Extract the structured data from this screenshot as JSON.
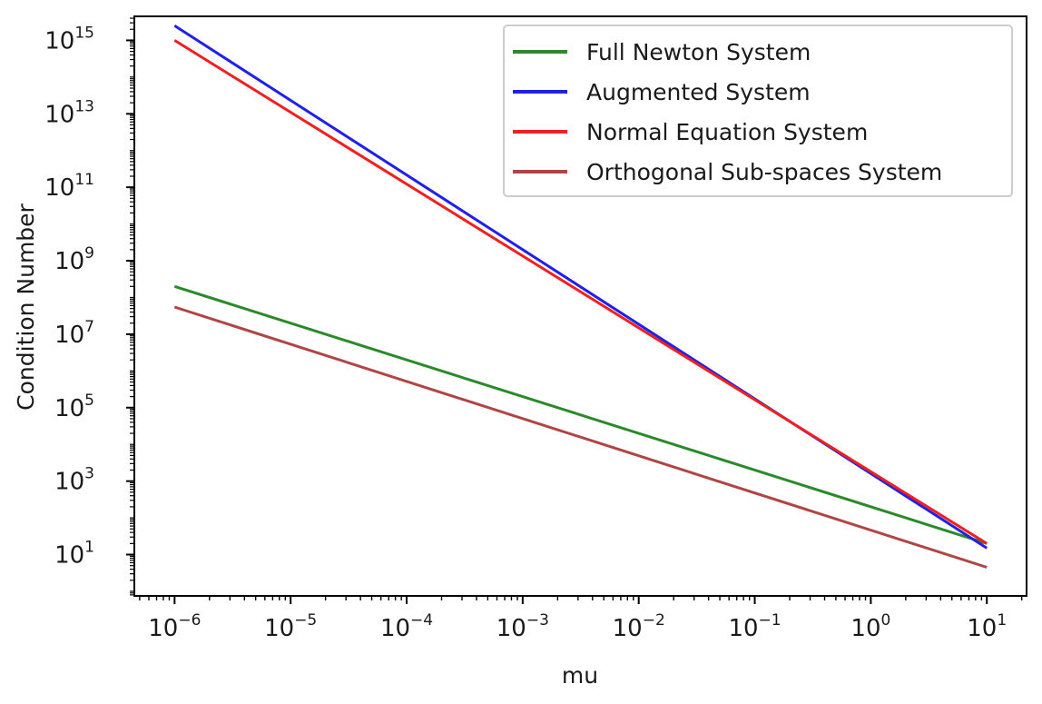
{
  "chart_data": {
    "type": "line",
    "xlabel": "mu",
    "ylabel": "Condition Number",
    "xscale": "log",
    "yscale": "log",
    "xlim": [
      4.5e-07,
      22
    ],
    "ylim": [
      0.75,
      4500000000000000.0
    ],
    "grid": false,
    "legend_position": "top-right",
    "x_ticks": [
      {
        "base": "10",
        "exp": "−6",
        "value": 1e-06
      },
      {
        "base": "10",
        "exp": "−5",
        "value": 1e-05
      },
      {
        "base": "10",
        "exp": "−4",
        "value": 0.0001
      },
      {
        "base": "10",
        "exp": "−3",
        "value": 0.001
      },
      {
        "base": "10",
        "exp": "−2",
        "value": 0.01
      },
      {
        "base": "10",
        "exp": "−1",
        "value": 0.1
      },
      {
        "base": "10",
        "exp": "0",
        "value": 1
      },
      {
        "base": "10",
        "exp": "1",
        "value": 10
      }
    ],
    "y_ticks": [
      {
        "base": "10",
        "exp": "1",
        "value": 10
      },
      {
        "base": "10",
        "exp": "3",
        "value": 1000
      },
      {
        "base": "10",
        "exp": "5",
        "value": 100000
      },
      {
        "base": "10",
        "exp": "7",
        "value": 10000000
      },
      {
        "base": "10",
        "exp": "9",
        "value": 1000000000
      },
      {
        "base": "10",
        "exp": "11",
        "value": 100000000000
      },
      {
        "base": "10",
        "exp": "13",
        "value": 10000000000000
      },
      {
        "base": "10",
        "exp": "15",
        "value": 1000000000000000
      }
    ],
    "series": [
      {
        "name": "Full Newton System",
        "color": "#2a8a2a",
        "x": [
          1e-06,
          10
        ],
        "y": [
          200000000.0,
          20
        ]
      },
      {
        "name": "Augmented System",
        "color": "#2020e8",
        "x": [
          1e-06,
          10
        ],
        "y": [
          2500000000000000.0,
          15
        ]
      },
      {
        "name": "Normal Equation System",
        "color": "#f02020",
        "x": [
          1e-06,
          10
        ],
        "y": [
          1000000000000000.0,
          20
        ]
      },
      {
        "name": "Orthogonal Sub-spaces System",
        "color": "#b04545",
        "x": [
          1e-06,
          10
        ],
        "y": [
          55000000.0,
          4.5
        ]
      }
    ]
  }
}
